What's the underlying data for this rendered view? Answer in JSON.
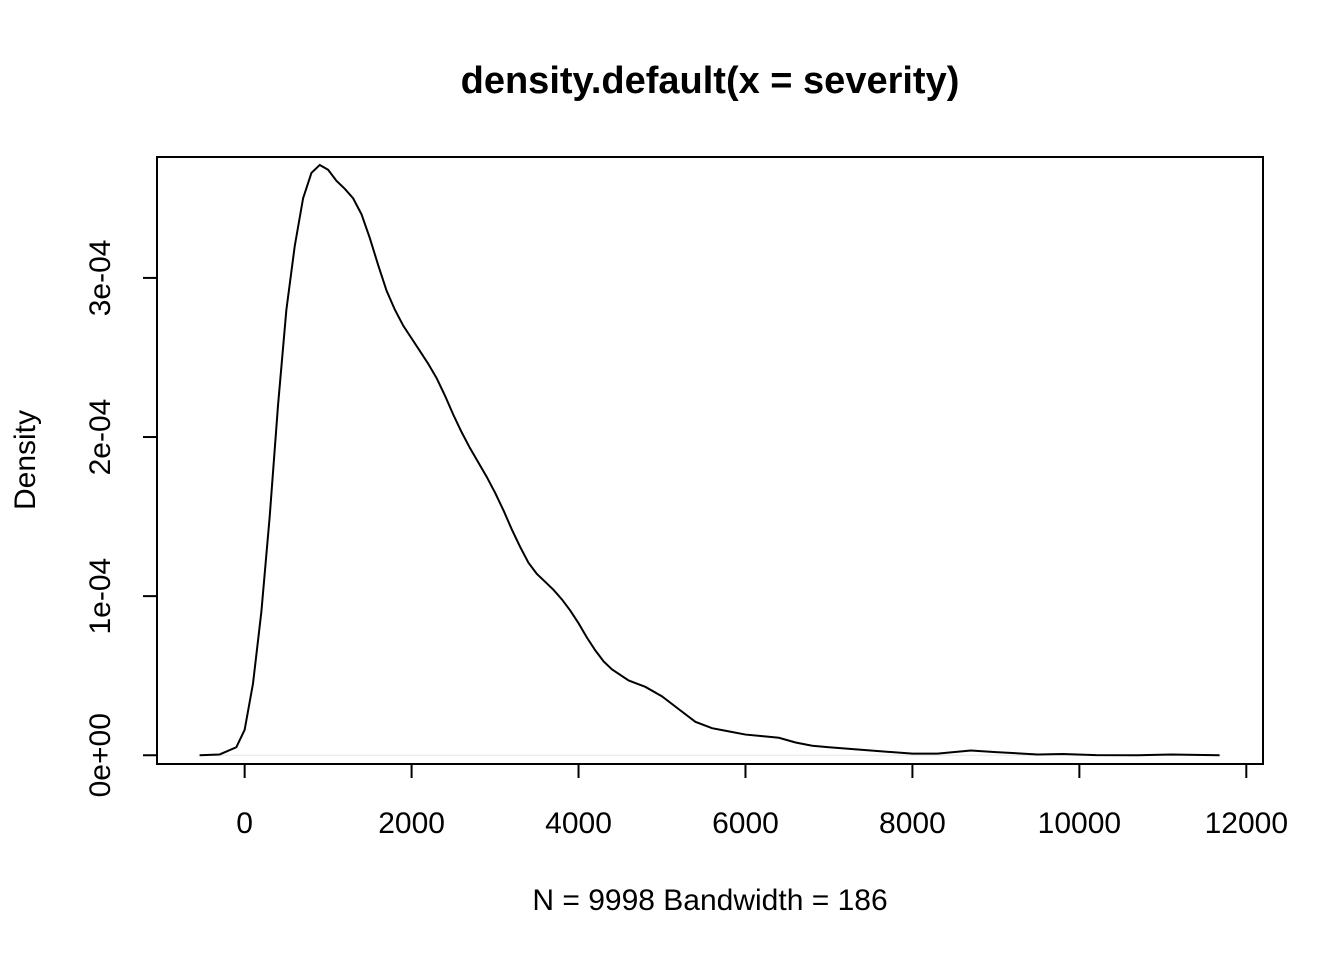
{
  "chart_data": {
    "type": "line",
    "title": "density.default(x = severity)",
    "xlabel": "N = 9998   Bandwidth = 186",
    "ylabel": "Density",
    "xlim": [
      -1050,
      12200
    ],
    "ylim": [
      -5.5e-06,
      0.000376
    ],
    "x_ticks": [
      0,
      2000,
      4000,
      6000,
      8000,
      10000,
      12000
    ],
    "x_tick_labels": [
      "0",
      "2000",
      "4000",
      "6000",
      "8000",
      "10000",
      "12000"
    ],
    "y_ticks": [
      0,
      0.0001,
      0.0002,
      0.0003
    ],
    "y_tick_labels": [
      "0e+00",
      "1e-04",
      "2e-04",
      "3e-04"
    ],
    "grid": false,
    "zero_line": true,
    "series": [
      {
        "name": "density",
        "x": [
          -540,
          -300,
          -100,
          0,
          100,
          200,
          300,
          400,
          500,
          600,
          700,
          800,
          900,
          1000,
          1100,
          1200,
          1300,
          1400,
          1500,
          1600,
          1700,
          1800,
          1900,
          2000,
          2100,
          2200,
          2300,
          2400,
          2500,
          2600,
          2700,
          2800,
          2900,
          3000,
          3100,
          3200,
          3300,
          3400,
          3500,
          3600,
          3700,
          3800,
          3900,
          4000,
          4100,
          4200,
          4300,
          4400,
          4600,
          4800,
          5000,
          5200,
          5400,
          5600,
          5800,
          6000,
          6200,
          6400,
          6600,
          6800,
          7000,
          7500,
          8000,
          8300,
          8700,
          9000,
          9500,
          9800,
          10200,
          10700,
          11100,
          11680
        ],
        "y": [
          0.0,
          5e-07,
          5e-06,
          1.6e-05,
          4.5e-05,
          9e-05,
          0.00015,
          0.00022,
          0.00028,
          0.00032,
          0.00035,
          0.000366,
          0.000371,
          0.000368,
          0.000361,
          0.000356,
          0.00035,
          0.00034,
          0.000325,
          0.000308,
          0.000292,
          0.00028,
          0.00027,
          0.000262,
          0.000254,
          0.000246,
          0.000237,
          0.000226,
          0.000214,
          0.000203,
          0.000193,
          0.000184,
          0.000175,
          0.000165,
          0.000154,
          0.000142,
          0.000131,
          0.000121,
          0.000114,
          0.000109,
          0.000104,
          9.8e-05,
          9.1e-05,
          8.3e-05,
          7.4e-05,
          6.6e-05,
          5.9e-05,
          5.4e-05,
          4.7e-05,
          4.3e-05,
          3.7e-05,
          2.9e-05,
          2.1e-05,
          1.7e-05,
          1.5e-05,
          1.3e-05,
          1.2e-05,
          1.1e-05,
          8e-06,
          6e-06,
          5e-06,
          3e-06,
          1e-06,
          1e-06,
          3e-06,
          2e-06,
          5e-07,
          8e-07,
          1e-07,
          0.0,
          5e-07,
          0.0
        ]
      }
    ]
  }
}
